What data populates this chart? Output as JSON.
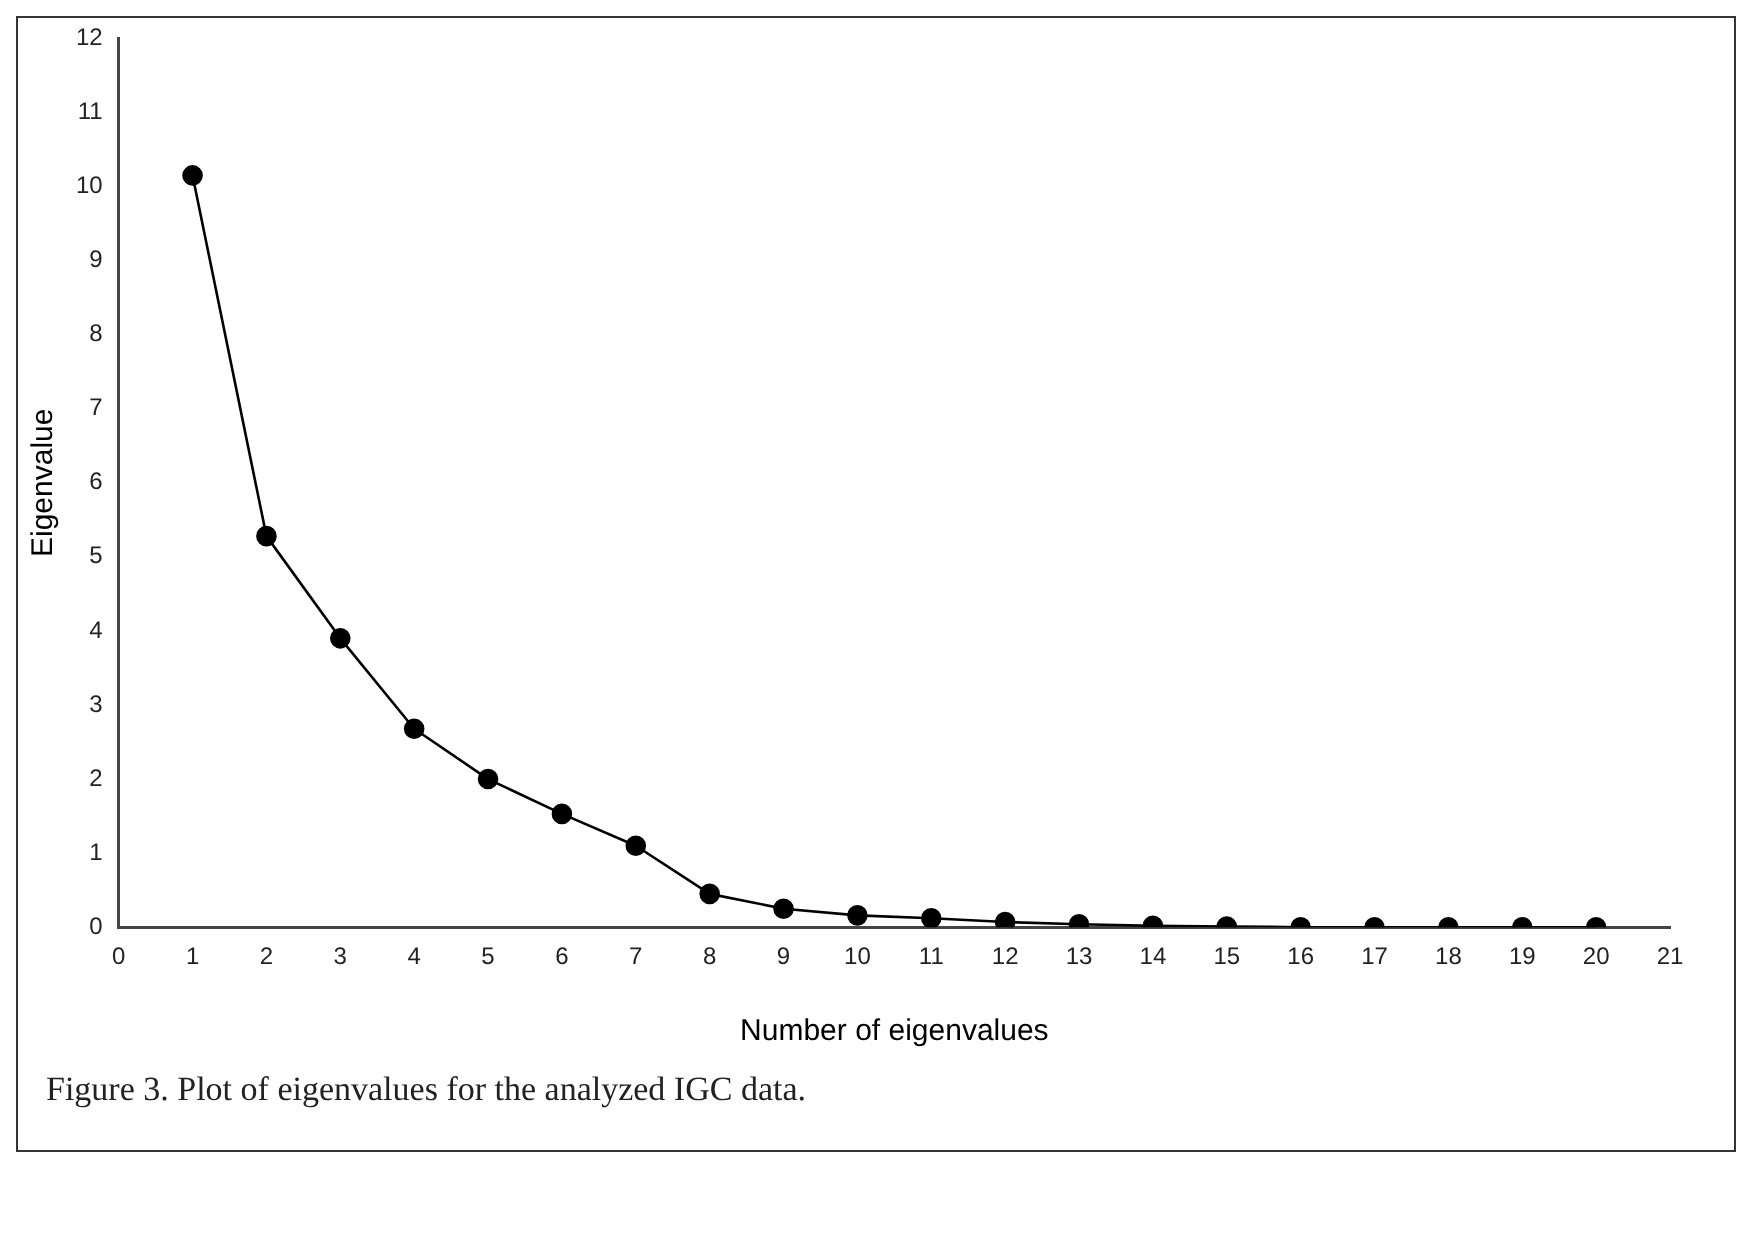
{
  "chart_data": {
    "type": "line",
    "xlabel": "Number of eigenvalues",
    "ylabel": "Eigenvalue",
    "annotations": [
      "Figure 3. Plot of eigenvalues for the analyzed IGC data."
    ],
    "x": [
      1,
      2,
      3,
      4,
      5,
      6,
      7,
      8,
      9,
      10,
      11,
      12,
      13,
      14,
      15,
      16,
      17,
      18,
      19,
      20
    ],
    "series": [
      {
        "color": "#000000",
        "values": [
          10.15,
          5.28,
          3.9,
          2.68,
          2.0,
          1.53,
          1.1,
          0.45,
          0.25,
          0.16,
          0.12,
          0.07,
          0.04,
          0.02,
          0.01,
          0,
          0,
          0,
          0,
          0
        ]
      }
    ],
    "xlim": [
      0,
      21
    ],
    "xticks": [
      0,
      1,
      2,
      3,
      4,
      5,
      6,
      7,
      8,
      9,
      10,
      11,
      12,
      13,
      14,
      15,
      16,
      17,
      18,
      19,
      20,
      21
    ],
    "ylim": [
      0,
      12
    ],
    "yticks": [
      0,
      1,
      2,
      3,
      4,
      5,
      6,
      7,
      8,
      9,
      10,
      11,
      12
    ],
    "grid": false,
    "legend": false,
    "marker": "circle",
    "line_style": "solid"
  }
}
